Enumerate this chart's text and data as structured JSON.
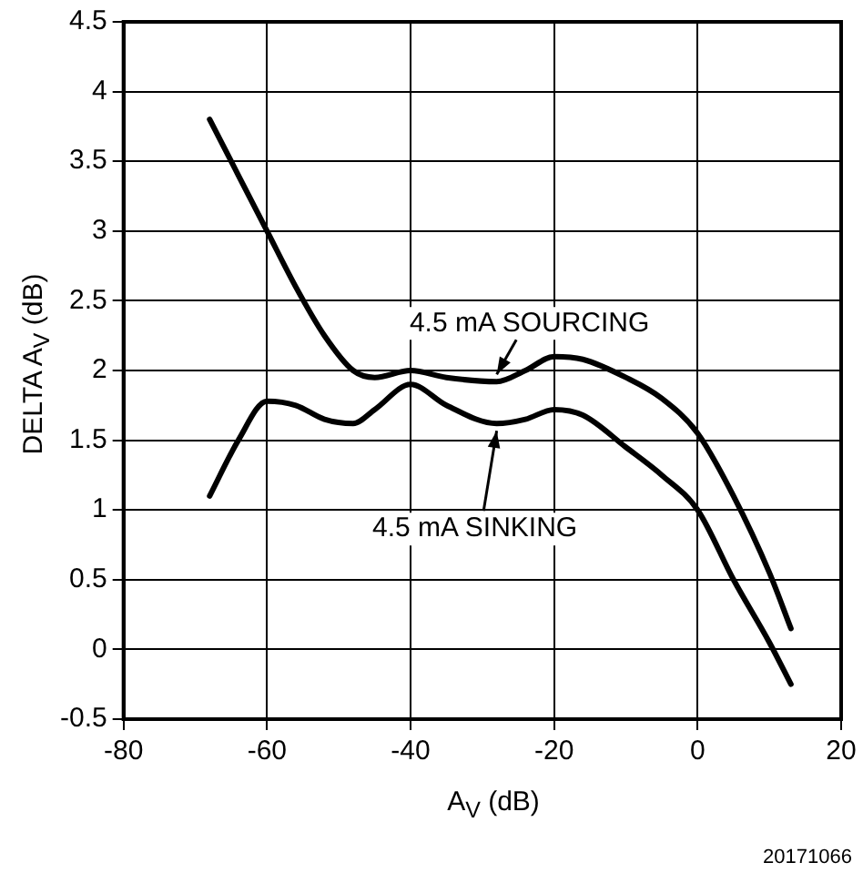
{
  "chart_data": {
    "type": "line",
    "xlabel": "A$_{V}$ (dB)",
    "ylabel": "DELTA A$_{V}$ (dB)",
    "xlim": [
      -80,
      20
    ],
    "xticks": [
      -80,
      -60,
      -40,
      -20,
      0,
      20
    ],
    "ylim": [
      -0.5,
      4.5
    ],
    "yticks": [
      -0.5,
      0,
      0.5,
      1,
      1.5,
      2,
      2.5,
      3,
      3.5,
      4,
      4.5
    ],
    "grid": true,
    "legend": false,
    "marker": "none",
    "line_style": "solid",
    "series": [
      {
        "name": "4.5 mA SOURCING",
        "color": "#000000",
        "x": [
          -68,
          -64,
          -60,
          -56,
          -52,
          -48,
          -45,
          -40,
          -35,
          -28,
          -24,
          -20,
          -16,
          -10,
          -5,
          0,
          5,
          10,
          13
        ],
        "values": [
          3.8,
          3.4,
          3.0,
          2.6,
          2.25,
          2.0,
          1.95,
          2.0,
          1.95,
          1.92,
          2.0,
          2.1,
          2.08,
          1.95,
          1.8,
          1.55,
          1.1,
          0.55,
          0.15
        ]
      },
      {
        "name": "4.5 mA SINKING",
        "color": "#000000",
        "x": [
          -68,
          -64,
          -60,
          -56,
          -52,
          -48,
          -45,
          -40,
          -35,
          -28,
          -24,
          -20,
          -16,
          -10,
          -5,
          0,
          5,
          10,
          13
        ],
        "values": [
          1.1,
          1.5,
          1.78,
          1.75,
          1.65,
          1.62,
          1.72,
          1.9,
          1.75,
          1.62,
          1.65,
          1.72,
          1.68,
          1.45,
          1.25,
          1.0,
          0.5,
          0.05,
          -0.25
        ]
      }
    ],
    "annotations": [
      "20171066"
    ]
  }
}
